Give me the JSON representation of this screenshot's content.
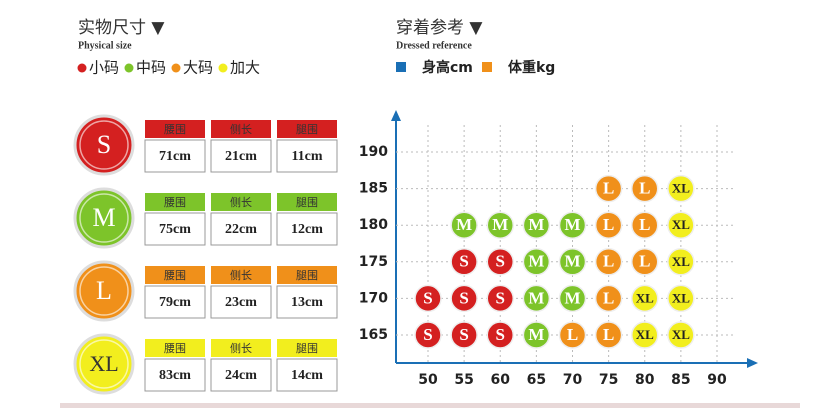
{
  "physical": {
    "title": "实物尺寸 ▼",
    "subtitle": "Physical size",
    "legend": [
      {
        "label": "小码",
        "color": "#d42020"
      },
      {
        "label": "中码",
        "color": "#7dc42a"
      },
      {
        "label": "大码",
        "color": "#f0901a"
      },
      {
        "label": "加大",
        "color": "#f2ee1e"
      }
    ],
    "rows": [
      {
        "size": "S",
        "color": "#d42020",
        "cells": [
          {
            "header": "腰围",
            "value": "71cm"
          },
          {
            "header": "侧长",
            "value": "21cm"
          },
          {
            "header": "腿围",
            "value": "11cm"
          }
        ]
      },
      {
        "size": "M",
        "color": "#7dc42a",
        "cells": [
          {
            "header": "腰围",
            "value": "75cm"
          },
          {
            "header": "侧长",
            "value": "22cm"
          },
          {
            "header": "腿围",
            "value": "12cm"
          }
        ]
      },
      {
        "size": "L",
        "color": "#f0901a",
        "cells": [
          {
            "header": "腰围",
            "value": "79cm"
          },
          {
            "header": "侧长",
            "value": "23cm"
          },
          {
            "header": "腿围",
            "value": "13cm"
          }
        ]
      },
      {
        "size": "XL",
        "color": "#f2ee1e",
        "cells": [
          {
            "header": "腰围",
            "value": "83cm"
          },
          {
            "header": "侧长",
            "value": "24cm"
          },
          {
            "header": "腿围",
            "value": "14cm"
          }
        ]
      }
    ]
  },
  "reference": {
    "title": "穿着参考 ▼",
    "subtitle": "Dressed reference",
    "legend": [
      {
        "label": "身高cm",
        "color": "#1a6fb5"
      },
      {
        "label": "体重kg",
        "color": "#f0901a"
      }
    ],
    "xticks": [
      50,
      55,
      60,
      65,
      70,
      75,
      80,
      85,
      90
    ],
    "yticks": [
      165,
      170,
      175,
      180,
      185,
      190
    ],
    "points": [
      {
        "x": 75,
        "y": 185,
        "label": "L"
      },
      {
        "x": 80,
        "y": 185,
        "label": "L"
      },
      {
        "x": 85,
        "y": 185,
        "label": "XL"
      },
      {
        "x": 55,
        "y": 180,
        "label": "M"
      },
      {
        "x": 60,
        "y": 180,
        "label": "M"
      },
      {
        "x": 65,
        "y": 180,
        "label": "M"
      },
      {
        "x": 70,
        "y": 180,
        "label": "M"
      },
      {
        "x": 75,
        "y": 180,
        "label": "L"
      },
      {
        "x": 80,
        "y": 180,
        "label": "L"
      },
      {
        "x": 85,
        "y": 180,
        "label": "XL"
      },
      {
        "x": 55,
        "y": 175,
        "label": "S"
      },
      {
        "x": 60,
        "y": 175,
        "label": "S"
      },
      {
        "x": 65,
        "y": 175,
        "label": "M"
      },
      {
        "x": 70,
        "y": 175,
        "label": "M"
      },
      {
        "x": 75,
        "y": 175,
        "label": "L"
      },
      {
        "x": 80,
        "y": 175,
        "label": "L"
      },
      {
        "x": 85,
        "y": 175,
        "label": "XL"
      },
      {
        "x": 50,
        "y": 170,
        "label": "S"
      },
      {
        "x": 55,
        "y": 170,
        "label": "S"
      },
      {
        "x": 60,
        "y": 170,
        "label": "S"
      },
      {
        "x": 65,
        "y": 170,
        "label": "M"
      },
      {
        "x": 70,
        "y": 170,
        "label": "M"
      },
      {
        "x": 75,
        "y": 170,
        "label": "L"
      },
      {
        "x": 80,
        "y": 170,
        "label": "XL"
      },
      {
        "x": 85,
        "y": 170,
        "label": "XL"
      },
      {
        "x": 50,
        "y": 165,
        "label": "S"
      },
      {
        "x": 55,
        "y": 165,
        "label": "S"
      },
      {
        "x": 60,
        "y": 165,
        "label": "S"
      },
      {
        "x": 65,
        "y": 165,
        "label": "M"
      },
      {
        "x": 70,
        "y": 165,
        "label": "L"
      },
      {
        "x": 75,
        "y": 165,
        "label": "L"
      },
      {
        "x": 80,
        "y": 165,
        "label": "XL"
      },
      {
        "x": 85,
        "y": 165,
        "label": "XL"
      }
    ]
  }
}
